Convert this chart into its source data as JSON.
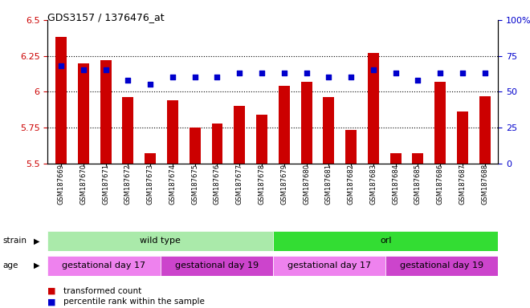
{
  "title": "GDS3157 / 1376476_at",
  "samples": [
    "GSM187669",
    "GSM187670",
    "GSM187671",
    "GSM187672",
    "GSM187673",
    "GSM187674",
    "GSM187675",
    "GSM187676",
    "GSM187677",
    "GSM187678",
    "GSM187679",
    "GSM187680",
    "GSM187681",
    "GSM187682",
    "GSM187683",
    "GSM187684",
    "GSM187685",
    "GSM187686",
    "GSM187687",
    "GSM187688"
  ],
  "bar_values": [
    6.38,
    6.2,
    6.22,
    5.96,
    5.57,
    5.94,
    5.75,
    5.78,
    5.9,
    5.84,
    6.04,
    6.07,
    5.96,
    5.73,
    6.27,
    5.57,
    5.57,
    6.07,
    5.86,
    5.97
  ],
  "dot_values": [
    68,
    65,
    65,
    58,
    55,
    60,
    60,
    60,
    63,
    63,
    63,
    63,
    60,
    60,
    65,
    63,
    58,
    63,
    63,
    63
  ],
  "ylim_left": [
    5.5,
    6.5
  ],
  "ylim_right": [
    0,
    100
  ],
  "yticks_left": [
    5.5,
    5.75,
    6.0,
    6.25,
    6.5
  ],
  "yticks_right": [
    0,
    25,
    50,
    75,
    100
  ],
  "hlines": [
    5.75,
    6.0,
    6.25
  ],
  "bar_color": "#cc0000",
  "dot_color": "#0000cc",
  "bar_bottom": 5.5,
  "strain_labels": [
    {
      "text": "wild type",
      "start": 0,
      "end": 10,
      "color": "#aaeaaa"
    },
    {
      "text": "orl",
      "start": 10,
      "end": 20,
      "color": "#33dd33"
    }
  ],
  "age_labels": [
    {
      "text": "gestational day 17",
      "start": 0,
      "end": 5,
      "color": "#ee82ee"
    },
    {
      "text": "gestational day 19",
      "start": 5,
      "end": 10,
      "color": "#cc44cc"
    },
    {
      "text": "gestational day 17",
      "start": 10,
      "end": 15,
      "color": "#ee82ee"
    },
    {
      "text": "gestational day 19",
      "start": 15,
      "end": 20,
      "color": "#cc44cc"
    }
  ],
  "legend_items": [
    {
      "label": "transformed count",
      "color": "#cc0000"
    },
    {
      "label": "percentile rank within the sample",
      "color": "#0000cc"
    }
  ],
  "left_axis_color": "#cc0000",
  "right_axis_color": "#0000cc"
}
